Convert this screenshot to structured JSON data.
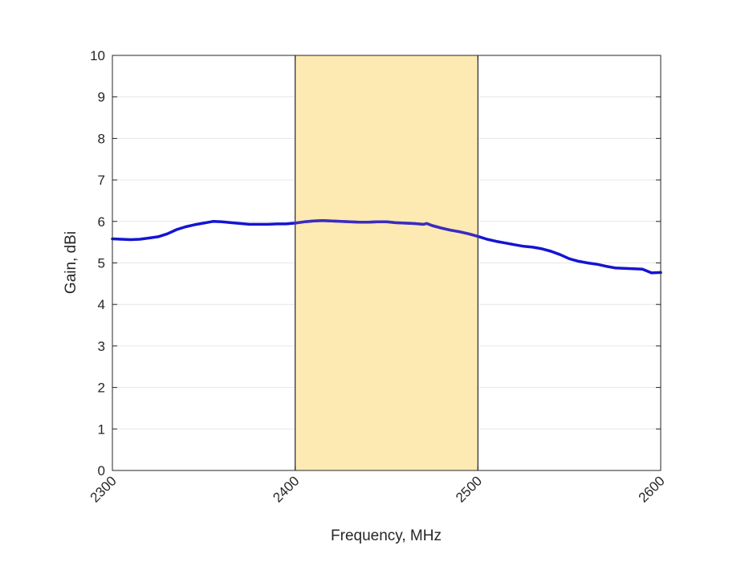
{
  "chart_data": {
    "type": "line",
    "xlabel": "Frequency, MHz",
    "ylabel": "Gain, dBi",
    "xlim": [
      2300,
      2600
    ],
    "ylim": [
      0,
      10
    ],
    "xticks": [
      "2300",
      "2400",
      "2500",
      "2600"
    ],
    "yticks": [
      "0",
      "1",
      "2",
      "3",
      "4",
      "5",
      "6",
      "7",
      "8",
      "9",
      "10"
    ],
    "grid": "horizontal",
    "highlight_band": {
      "x": [
        2400,
        2500
      ],
      "color": "#FDE9B2"
    },
    "series": [
      {
        "color": "#1414D2",
        "x": [
          2300,
          2310,
          2315,
          2320,
          2325,
          2330,
          2335,
          2340,
          2345,
          2350,
          2355,
          2360,
          2365,
          2370,
          2375,
          2380,
          2385,
          2390,
          2395,
          2400,
          2405,
          2410,
          2415,
          2420,
          2425,
          2430,
          2435,
          2440,
          2445,
          2450,
          2455,
          2460,
          2465,
          2470,
          2472,
          2475,
          2480,
          2485,
          2490,
          2495,
          2500,
          2505,
          2510,
          2515,
          2520,
          2525,
          2530,
          2535,
          2540,
          2545,
          2550,
          2555,
          2560,
          2565,
          2570,
          2575,
          2580,
          2585,
          2590,
          2595,
          2600
        ],
        "y": [
          5.58,
          5.56,
          5.57,
          5.6,
          5.63,
          5.7,
          5.8,
          5.87,
          5.92,
          5.96,
          6.0,
          5.99,
          5.97,
          5.95,
          5.93,
          5.93,
          5.93,
          5.94,
          5.94,
          5.96,
          5.99,
          6.01,
          6.02,
          6.01,
          6.0,
          5.99,
          5.98,
          5.98,
          5.99,
          5.99,
          5.97,
          5.96,
          5.95,
          5.93,
          5.95,
          5.9,
          5.84,
          5.79,
          5.75,
          5.7,
          5.64,
          5.57,
          5.52,
          5.48,
          5.44,
          5.4,
          5.38,
          5.34,
          5.28,
          5.2,
          5.1,
          5.04,
          5.0,
          4.97,
          4.92,
          4.88,
          4.87,
          4.86,
          4.85,
          4.76,
          4.77
        ]
      }
    ]
  }
}
